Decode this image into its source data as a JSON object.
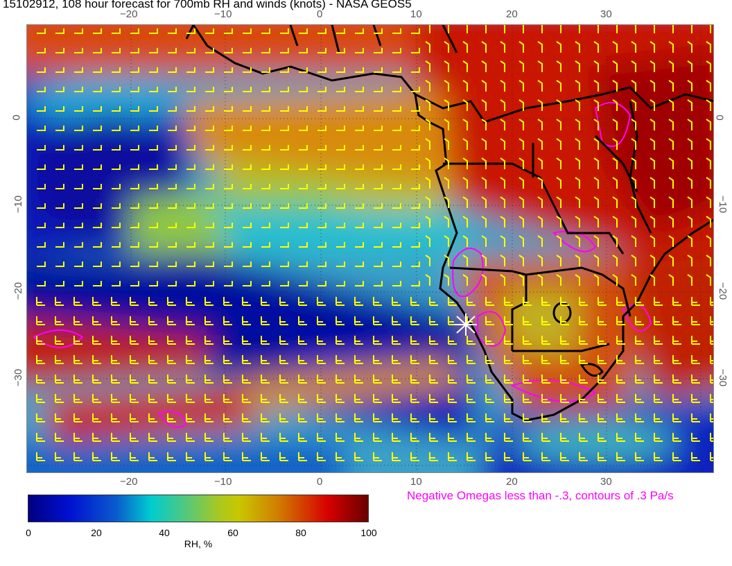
{
  "title": "15102912, 108 hour forecast for 700mb RH and winds (knots) - NASA GEOS5",
  "lon_ticks": [
    "−20",
    "−10",
    "0",
    "10",
    "20",
    "30"
  ],
  "lat_ticks": [
    "0",
    "−10",
    "−20",
    "−30"
  ],
  "colorbar": {
    "ticks": [
      "0",
      "20",
      "40",
      "60",
      "80",
      "100"
    ],
    "label": "RH, %",
    "colors": [
      "#000080",
      "#0010d0",
      "#00ccd0",
      "#c8c800",
      "#d80000",
      "#6a0000"
    ],
    "range": [
      0,
      100
    ]
  },
  "omega_note": "Negative Omegas less than -.3, contours of .3 Pa/s",
  "colors": {
    "wind_barbs": "#ffff00",
    "omega_contours": "#ff00ff",
    "coastlines": "#000000",
    "marker": "#ffffff"
  },
  "map_extent": {
    "lon": [
      -31,
      41
    ],
    "lat": [
      -41,
      11
    ]
  }
}
